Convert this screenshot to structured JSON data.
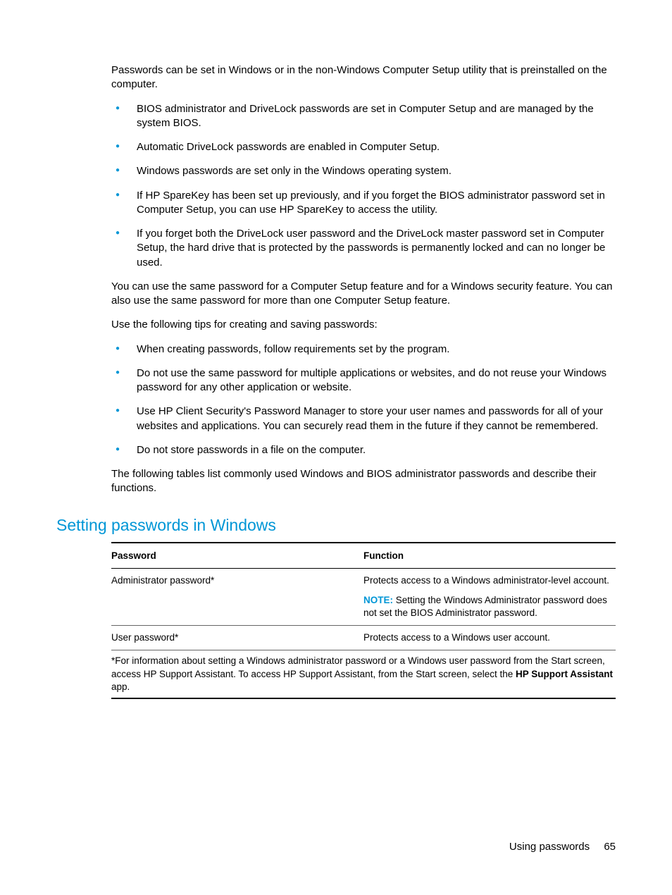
{
  "intro": "Passwords can be set in Windows or in the non-Windows Computer Setup utility that is preinstalled on the computer.",
  "bullets1": [
    "BIOS administrator and DriveLock passwords are set in Computer Setup and are managed by the system BIOS.",
    "Automatic DriveLock passwords are enabled in Computer Setup.",
    "Windows passwords are set only in the Windows operating system.",
    "If HP SpareKey has been set up previously, and if you forget the BIOS administrator password set in Computer Setup, you can use HP SpareKey to access the utility.",
    "If you forget both the DriveLock user password and the DriveLock master password set in Computer Setup, the hard drive that is protected by the passwords is permanently locked and can no longer be used."
  ],
  "para2": "You can use the same password for a Computer Setup feature and for a Windows security feature. You can also use the same password for more than one Computer Setup feature.",
  "para3": "Use the following tips for creating and saving passwords:",
  "bullets2": [
    "When creating passwords, follow requirements set by the program.",
    "Do not use the same password for multiple applications or websites, and do not reuse your Windows password for any other application or website.",
    "Use HP Client Security's Password Manager to store your user names and passwords for all of your websites and applications. You can securely read them in the future if they cannot be remembered.",
    "Do not store passwords in a file on the computer."
  ],
  "para4": "The following tables list commonly used Windows and BIOS administrator passwords and describe their functions.",
  "heading": "Setting passwords in Windows",
  "table": {
    "col1": "Password",
    "col2": "Function",
    "rows": [
      {
        "pw": "Administrator password*",
        "fn": "Protects access to a Windows administrator-level account.",
        "note_label": "NOTE:",
        "note_text": "Setting the Windows Administrator password does not set the BIOS Administrator password."
      },
      {
        "pw": "User password*",
        "fn": "Protects access to a Windows user account."
      }
    ],
    "footnote_pre": "*For information about setting a Windows administrator password or a Windows user password from the Start screen, access HP Support Assistant. To access HP Support Assistant, from the Start screen, select the ",
    "footnote_bold": "HP Support Assistant",
    "footnote_post": " app."
  },
  "footer": {
    "section": "Using passwords",
    "page": "65"
  }
}
